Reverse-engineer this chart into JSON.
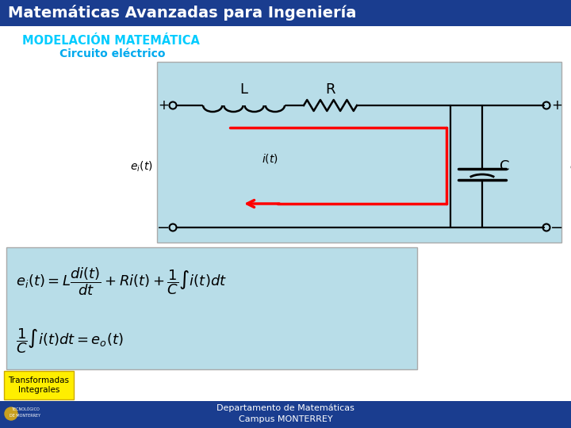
{
  "title": "Matemáticas Avanzadas para Ingeniería",
  "title_bg": "#1a3d8f",
  "title_color": "#ffffff",
  "subtitle1": "MODELACIÓN MATEMÁTICA",
  "subtitle1_color": "#00ccff",
  "subtitle2": "Circuito eléctrico",
  "subtitle2_color": "#00aaee",
  "main_bg": "#ffffff",
  "circuit_bg": "#b8dde8",
  "formula_bg": "#b8dde8",
  "footer_bg": "#1a3d8f",
  "footer_text1": "Departamento de Matemáticas",
  "footer_text2": "Campus MONTERREY",
  "footer_color": "#ffffff",
  "tab_text": "Transformadas\nIntegrales",
  "tab_bg": "#ffee00",
  "tab_color": "#000000"
}
